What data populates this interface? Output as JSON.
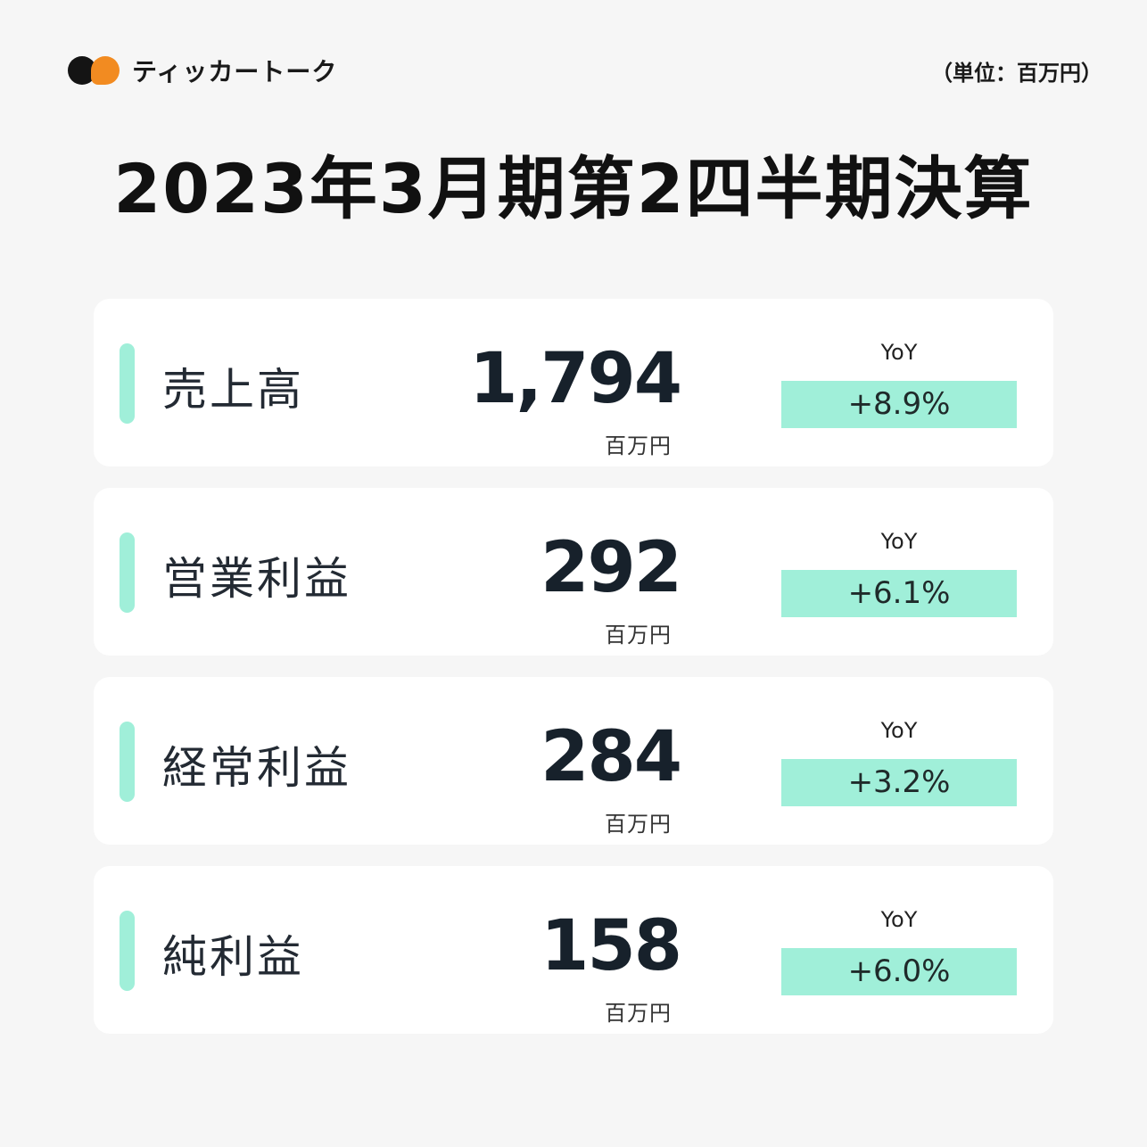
{
  "brand": {
    "name": "ティッカートーク"
  },
  "unit_note": "（単位：百万円）",
  "title": "2023年3月期第2四半期決算",
  "colors": {
    "accent": "#a0efd9",
    "brand_orange": "#f28b21",
    "brand_black": "#141414"
  },
  "metrics": [
    {
      "label": "売上高",
      "value": "1,794",
      "unit": "百万円",
      "yoy_label": "YoY",
      "yoy": "+8.9%"
    },
    {
      "label": "営業利益",
      "value": "292",
      "unit": "百万円",
      "yoy_label": "YoY",
      "yoy": "+6.1%"
    },
    {
      "label": "経常利益",
      "value": "284",
      "unit": "百万円",
      "yoy_label": "YoY",
      "yoy": "+3.2%"
    },
    {
      "label": "純利益",
      "value": "158",
      "unit": "百万円",
      "yoy_label": "YoY",
      "yoy": "+6.0%"
    }
  ]
}
